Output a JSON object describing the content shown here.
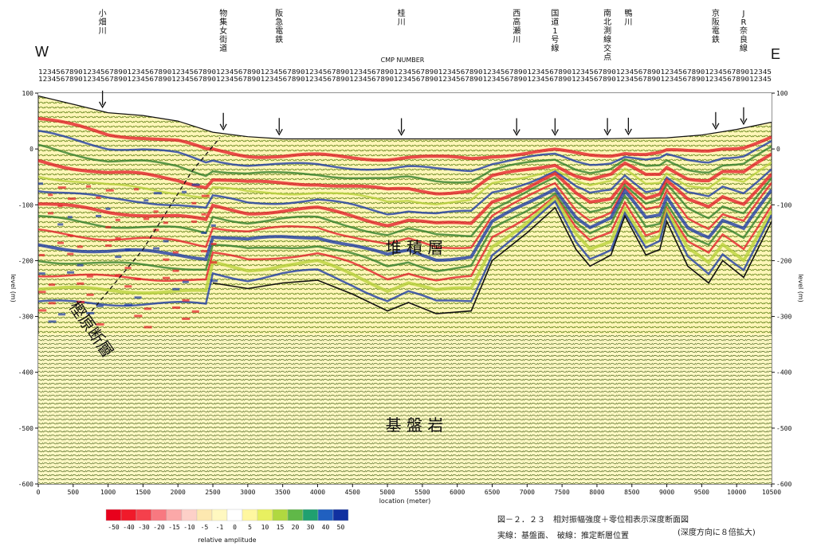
{
  "direction": {
    "west": "W",
    "east": "E"
  },
  "cmp_label": "CMP NUMBER",
  "landmarks": [
    {
      "label": "小畑川",
      "x_m": 920
    },
    {
      "label": "物集女街道",
      "x_m": 2650
    },
    {
      "label": "阪急電鉄",
      "x_m": 3450
    },
    {
      "label": "桂川",
      "x_m": 5200
    },
    {
      "label": "西高瀬川",
      "x_m": 6850
    },
    {
      "label": "国道1号線",
      "x_m": 7400
    },
    {
      "label": "南北測線交点",
      "x_m": 8150
    },
    {
      "label": "鴨川",
      "x_m": 8450
    },
    {
      "label": "京阪電鉄",
      "x_m": 9700
    },
    {
      "label": "JR奈良線",
      "x_m": 10100
    }
  ],
  "formation_labels": {
    "sediment": "堆 積 層",
    "basement": "基 盤 岩",
    "fault": "樫原断層"
  },
  "colorbar": {
    "ticks": [
      "-50",
      "-40",
      "-30",
      "-20",
      "-15",
      "-10",
      "-5",
      "-1",
      "0",
      "5",
      "10",
      "15",
      "20",
      "30",
      "40",
      "50"
    ],
    "label": "relative amplitude",
    "colors": [
      "#e8001c",
      "#f01a2a",
      "#f5404c",
      "#f87880",
      "#fba8a8",
      "#fdd0c8",
      "#fde8b0",
      "#fff8c0",
      "#ffffff",
      "#fff7a0",
      "#e8f060",
      "#b0d840",
      "#60b848",
      "#20a070",
      "#2060c0",
      "#1030a0"
    ]
  },
  "caption": {
    "title": "図－２．２３　相対振幅強度＋零位相表示深度断面図",
    "legend": "実線：基盤面、　破線：推定断層位置",
    "note": "(深度方向に８倍拡大)"
  },
  "chart_data": {
    "type": "heatmap",
    "title": "",
    "xlabel": "location (meter)",
    "ylabel": "level (m)",
    "xlim": [
      0,
      10500
    ],
    "ylim": [
      -600,
      100
    ],
    "x_ticks": [
      0,
      500,
      1000,
      1500,
      2000,
      2500,
      3000,
      3500,
      4000,
      4500,
      5000,
      5500,
      6000,
      6500,
      7000,
      7500,
      8000,
      8500,
      9000,
      9500,
      10000,
      10500
    ],
    "y_ticks": [
      100,
      0,
      -100,
      -200,
      -300,
      -400,
      -500,
      -600
    ],
    "surface_line": [
      [
        0,
        95
      ],
      [
        500,
        80
      ],
      [
        1000,
        65
      ],
      [
        1500,
        60
      ],
      [
        2000,
        50
      ],
      [
        2500,
        30
      ],
      [
        3000,
        22
      ],
      [
        3500,
        18
      ],
      [
        4000,
        18
      ],
      [
        5000,
        18
      ],
      [
        6000,
        18
      ],
      [
        7000,
        18
      ],
      [
        8000,
        18
      ],
      [
        9000,
        20
      ],
      [
        9500,
        25
      ],
      [
        10000,
        35
      ],
      [
        10500,
        48
      ]
    ],
    "basement_line": [
      [
        2500,
        -240
      ],
      [
        3000,
        -250
      ],
      [
        3500,
        -240
      ],
      [
        4000,
        -235
      ],
      [
        4500,
        -260
      ],
      [
        5000,
        -290
      ],
      [
        5300,
        -275
      ],
      [
        5700,
        -295
      ],
      [
        6200,
        -290
      ],
      [
        6500,
        -200
      ],
      [
        7000,
        -150
      ],
      [
        7400,
        -105
      ],
      [
        7700,
        -180
      ],
      [
        7900,
        -210
      ],
      [
        8200,
        -190
      ],
      [
        8400,
        -120
      ],
      [
        8700,
        -190
      ],
      [
        8900,
        -180
      ],
      [
        9000,
        -130
      ],
      [
        9300,
        -210
      ],
      [
        9600,
        -240
      ],
      [
        9800,
        -200
      ],
      [
        10100,
        -230
      ],
      [
        10300,
        -180
      ],
      [
        10500,
        -130
      ]
    ],
    "fault_line": [
      [
        700,
        -300
      ],
      [
        1500,
        -180
      ],
      [
        2200,
        -40
      ],
      [
        2600,
        20
      ]
    ],
    "arrow_locations_m": [
      920,
      2650,
      3450,
      5200,
      6850,
      7400,
      8150,
      8450,
      9700,
      10100
    ]
  }
}
